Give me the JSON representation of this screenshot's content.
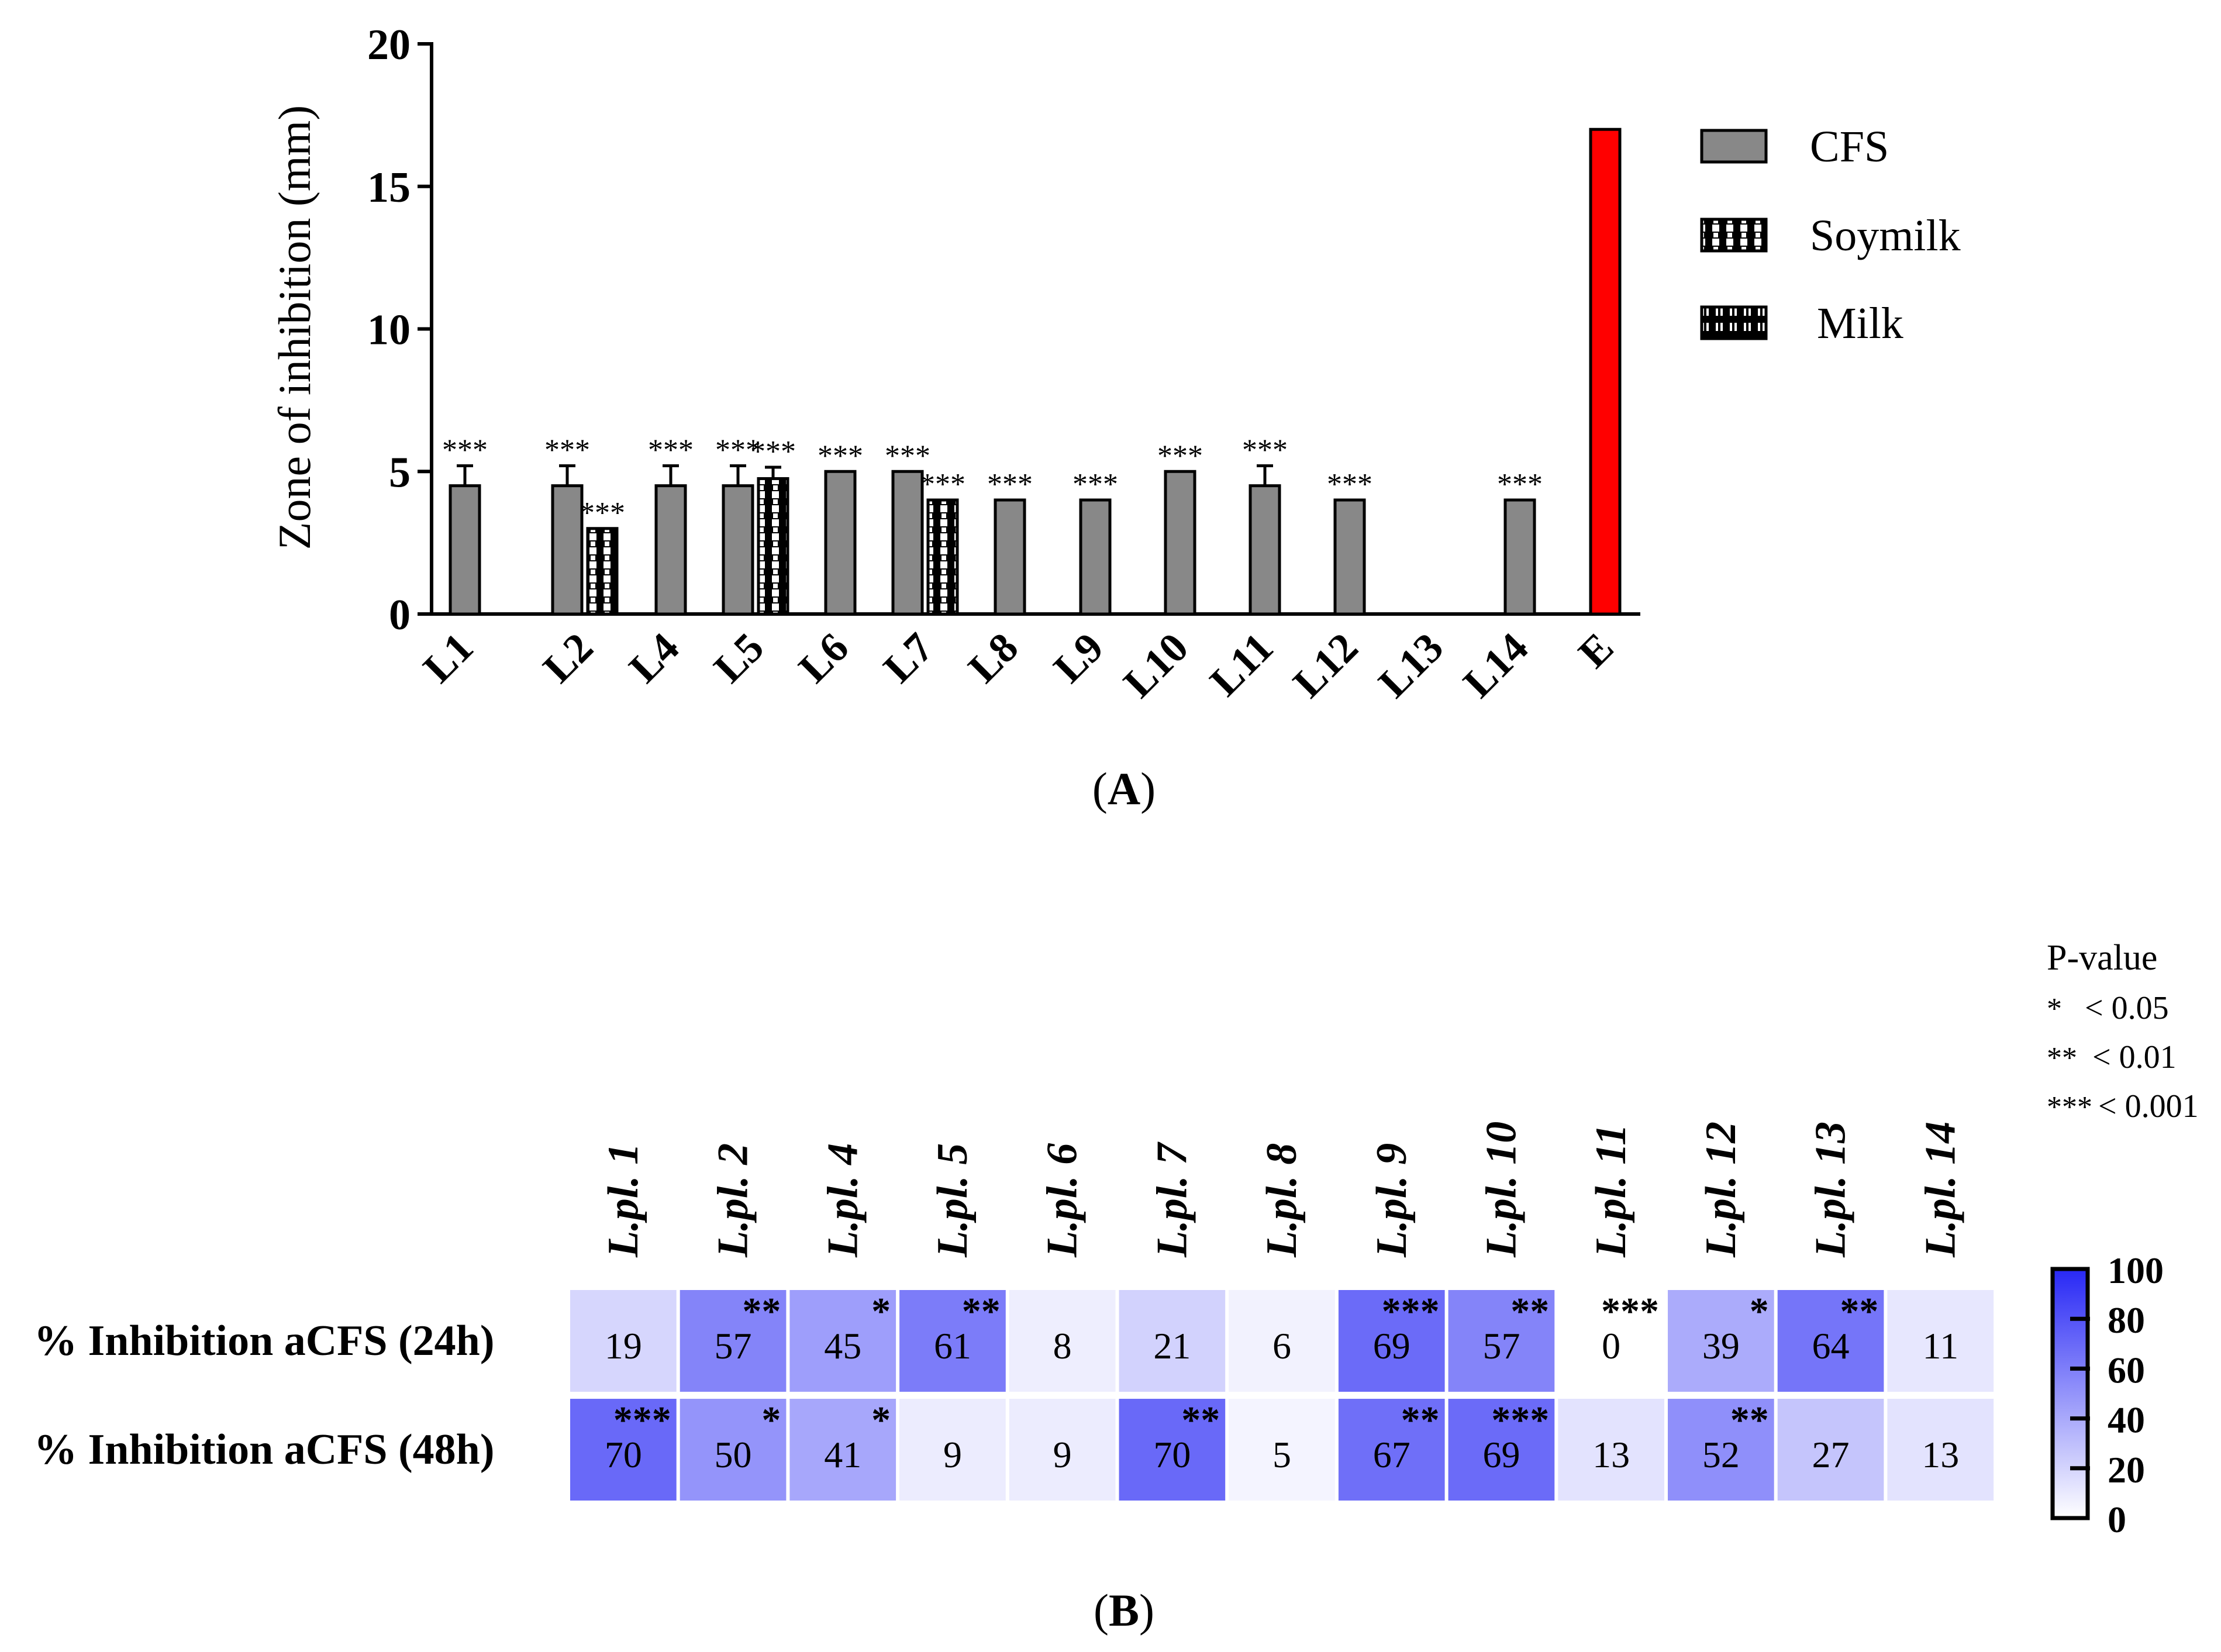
{
  "colors": {
    "cfs": "#888888",
    "control": "#ff0000",
    "heat_max": "#2828f5",
    "heat_min": "#ffffff",
    "axis": "#000000"
  },
  "chart_data": [
    {
      "panel": "(A)",
      "panel_letter": "A",
      "type": "bar",
      "ylabel": "Zone of inhibition (mm)",
      "ylim": [
        0,
        20
      ],
      "yticks": [
        0,
        5,
        10,
        15,
        20
      ],
      "legend": {
        "position": "top-right",
        "entries": [
          {
            "label": "CFS",
            "pattern": "solid-gray"
          },
          {
            "label": "Soymilk",
            "pattern": "checker"
          },
          {
            "label": "Milk",
            "pattern": "vertical-dash"
          }
        ]
      },
      "categories": [
        "L1",
        "L2",
        "L4",
        "L5",
        "L6",
        "L7",
        "L8",
        "L9",
        "L10",
        "L11",
        "L12",
        "L13",
        "L14",
        "E"
      ],
      "series": [
        {
          "name": "CFS",
          "values": [
            4.5,
            4.5,
            4.5,
            4.5,
            5.0,
            5.0,
            4.0,
            4.0,
            5.0,
            4.5,
            4.0,
            null,
            4.0,
            17.0
          ],
          "errors": [
            0.7,
            0.7,
            0.7,
            0.7,
            0,
            0,
            0,
            0,
            0,
            0.7,
            0,
            null,
            0,
            0
          ],
          "sig": [
            "***",
            "***",
            "***",
            "***",
            "***",
            "***",
            "***",
            "***",
            "***",
            "***",
            "***",
            "",
            "***",
            ""
          ]
        },
        {
          "name": "Soymilk",
          "values": [
            null,
            3.0,
            null,
            4.75,
            null,
            4.0,
            null,
            null,
            null,
            null,
            null,
            null,
            null,
            null
          ],
          "errors": [
            null,
            0,
            null,
            0.4,
            null,
            0,
            null,
            null,
            null,
            null,
            null,
            null,
            null,
            null
          ],
          "sig": [
            "",
            "***",
            "",
            "***",
            "",
            "***",
            "",
            "",
            "",
            "",
            "",
            "",
            "",
            ""
          ]
        }
      ]
    },
    {
      "panel": "(B)",
      "panel_letter": "B",
      "type": "heatmap",
      "columns": [
        "L.pl. 1",
        "L.pl. 2",
        "L.pl. 4",
        "L.pl. 5",
        "L.pl. 6",
        "L.pl. 7",
        "L.pl. 8",
        "L.pl. 9",
        "L.pl. 10",
        "L.pl. 11",
        "L.pl. 12",
        "L.pl. 13",
        "L.pl. 14"
      ],
      "rows": [
        {
          "label": "% Inhibition aCFS (24h)",
          "values": [
            19,
            57,
            45,
            61,
            8,
            21,
            6,
            69,
            57,
            0,
            39,
            64,
            11
          ],
          "sig": [
            "",
            "**",
            "*",
            "**",
            "",
            "",
            "",
            "***",
            "**",
            "***",
            "*",
            "**",
            ""
          ]
        },
        {
          "label": "% Inhibition aCFS (48h)",
          "values": [
            70,
            50,
            41,
            9,
            9,
            70,
            5,
            67,
            69,
            13,
            52,
            27,
            13
          ],
          "sig": [
            "***",
            "*",
            "*",
            "",
            "",
            "**",
            "",
            "**",
            "***",
            "",
            "**",
            "",
            ""
          ]
        }
      ],
      "colorbar": {
        "min": 0,
        "max": 100,
        "ticks": [
          0,
          20,
          40,
          60,
          80,
          100
        ]
      },
      "pvalue_legend": {
        "title": "P-value",
        "entries": [
          {
            "symbol": "*",
            "text": "< 0.05"
          },
          {
            "symbol": "**",
            "text": "< 0.01"
          },
          {
            "symbol": "***",
            "text": "< 0.001"
          }
        ]
      }
    }
  ]
}
